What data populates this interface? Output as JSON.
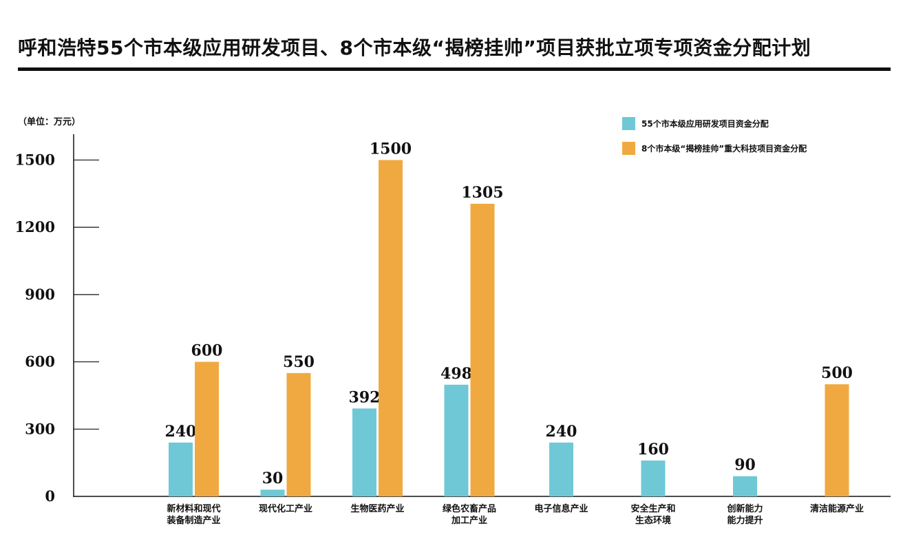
{
  "title": "呼和浩特55个市本级应用研发项目、8个市本级“揭榜挂帅”项目获批立项专项资金分配计划",
  "unit_label": "（单位：万元）",
  "colors": {
    "series_1": "#6fc8d6",
    "series_2": "#f0a941",
    "axis": "#111111"
  },
  "chart_data": {
    "type": "bar",
    "categories": [
      [
        "新材料和现代",
        "装备制造产业"
      ],
      [
        "现代化工产业"
      ],
      [
        "生物医药产业"
      ],
      [
        "绿色农畜产品",
        "加工产业"
      ],
      [
        "电子信息产业"
      ],
      [
        "安全生产和",
        "生态环境"
      ],
      [
        "创新能力",
        "能力提升"
      ],
      [
        "清洁能源产业"
      ]
    ],
    "series": [
      {
        "name": "55个市本级应用研发项目资金分配",
        "values": [
          240,
          30,
          392,
          498,
          240,
          160,
          90,
          null
        ]
      },
      {
        "name": "8个市本级“揭榜挂帅”重大科技项目资金分配",
        "values": [
          600,
          550,
          1500,
          1305,
          null,
          null,
          null,
          500
        ]
      }
    ],
    "yticks": [
      0,
      300,
      600,
      900,
      1200,
      1500
    ],
    "ylim": [
      0,
      1600
    ],
    "legend_position": "top-right",
    "grid": false
  }
}
